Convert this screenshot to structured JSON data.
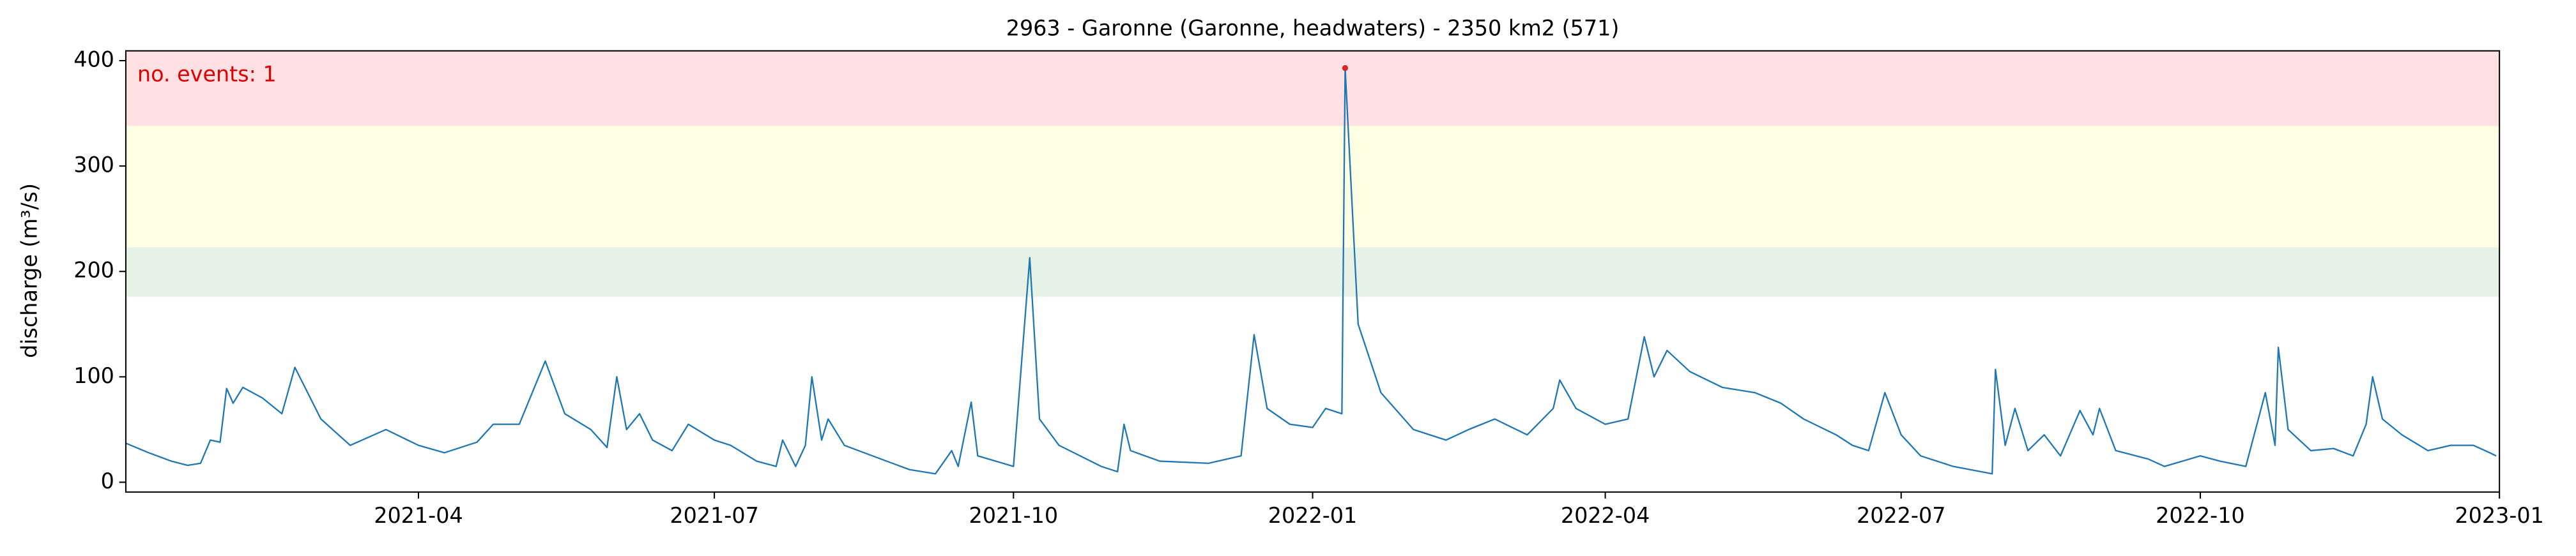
{
  "chart_data": {
    "type": "line",
    "title": "2963 - Garonne (Garonne, headwaters) - 2350 km2 (571)",
    "y_label": "discharge (m³/s)",
    "annotation": "no. events: 1",
    "xlim": [
      "2021-01",
      "2023-01"
    ],
    "xticks": [
      "2021-04",
      "2021-07",
      "2021-10",
      "2022-01",
      "2022-04",
      "2022-07",
      "2022-10",
      "2023-01"
    ],
    "ylim": [
      -9.3,
      409.3
    ],
    "yticks": [
      0,
      100,
      200,
      300,
      400
    ],
    "grid": false,
    "bands": [
      {
        "ymin": 176,
        "ymax": 223,
        "color": "#e5f2e5"
      },
      {
        "ymin": 223,
        "ymax": 338,
        "color": "#fefee3"
      },
      {
        "ymin": 338,
        "ymax": 409.3,
        "color": "#ffe1e4"
      }
    ],
    "x": [
      "2021-01-01",
      "2021-01-08",
      "2021-01-15",
      "2021-01-20",
      "2021-01-24",
      "2021-01-27",
      "2021-01-30",
      "2021-02-01",
      "2021-02-03",
      "2021-02-06",
      "2021-02-12",
      "2021-02-18",
      "2021-02-22",
      "2021-03-02",
      "2021-03-11",
      "2021-03-22",
      "2021-04-01",
      "2021-04-09",
      "2021-04-19",
      "2021-04-24",
      "2021-05-02",
      "2021-05-10",
      "2021-05-16",
      "2021-05-24",
      "2021-05-29",
      "2021-06-01",
      "2021-06-04",
      "2021-06-08",
      "2021-06-12",
      "2021-06-18",
      "2021-06-23",
      "2021-07-01",
      "2021-07-06",
      "2021-07-14",
      "2021-07-20",
      "2021-07-22",
      "2021-07-26",
      "2021-07-29",
      "2021-07-31",
      "2021-08-03",
      "2021-08-05",
      "2021-08-10",
      "2021-08-23",
      "2021-08-30",
      "2021-09-07",
      "2021-09-12",
      "2021-09-14",
      "2021-09-18",
      "2021-09-20",
      "2021-10-01",
      "2021-10-06",
      "2021-10-09",
      "2021-10-15",
      "2021-10-28",
      "2021-11-02",
      "2021-11-04",
      "2021-11-06",
      "2021-11-15",
      "2021-11-30",
      "2021-12-10",
      "2021-12-14",
      "2021-12-18",
      "2021-12-25",
      "2022-01-01",
      "2022-01-05",
      "2022-01-10",
      "2022-01-11",
      "2022-01-15",
      "2022-01-22",
      "2022-02-01",
      "2022-02-11",
      "2022-02-18",
      "2022-02-26",
      "2022-03-08",
      "2022-03-16",
      "2022-03-18",
      "2022-03-23",
      "2022-04-01",
      "2022-04-08",
      "2022-04-13",
      "2022-04-16",
      "2022-04-20",
      "2022-04-27",
      "2022-05-07",
      "2022-05-17",
      "2022-05-25",
      "2022-06-01",
      "2022-06-11",
      "2022-06-16",
      "2022-06-21",
      "2022-06-26",
      "2022-07-01",
      "2022-07-07",
      "2022-07-17",
      "2022-07-29",
      "2022-07-30",
      "2022-08-02",
      "2022-08-05",
      "2022-08-09",
      "2022-08-14",
      "2022-08-19",
      "2022-08-25",
      "2022-08-29",
      "2022-08-31",
      "2022-09-05",
      "2022-09-15",
      "2022-09-20",
      "2022-10-01",
      "2022-10-07",
      "2022-10-15",
      "2022-10-21",
      "2022-10-24",
      "2022-10-25",
      "2022-10-28",
      "2022-11-04",
      "2022-11-11",
      "2022-11-17",
      "2022-11-21",
      "2022-11-23",
      "2022-11-26",
      "2022-12-02",
      "2022-12-10",
      "2022-12-17",
      "2022-12-24",
      "2022-12-29",
      "2022-12-31"
    ],
    "series": [
      {
        "color": "#1f77b4",
        "values": [
          37,
          28,
          20,
          16,
          18,
          40,
          38,
          89,
          75,
          90,
          80,
          65,
          109,
          60,
          35,
          50,
          35,
          28,
          38,
          55,
          55,
          115,
          65,
          50,
          33,
          100,
          50,
          65,
          40,
          30,
          55,
          40,
          35,
          20,
          15,
          40,
          15,
          35,
          100,
          40,
          60,
          35,
          20,
          12,
          8,
          30,
          15,
          76,
          25,
          15,
          213,
          60,
          35,
          15,
          10,
          55,
          30,
          20,
          18,
          25,
          140,
          70,
          55,
          52,
          70,
          65,
          393,
          150,
          85,
          50,
          40,
          50,
          60,
          45,
          70,
          97,
          70,
          55,
          60,
          138,
          100,
          125,
          105,
          90,
          85,
          75,
          60,
          45,
          35,
          30,
          85,
          45,
          25,
          15,
          8,
          107,
          35,
          70,
          30,
          45,
          25,
          68,
          45,
          70,
          30,
          22,
          15,
          25,
          20,
          15,
          85,
          35,
          128,
          50,
          30,
          32,
          25,
          55,
          100,
          60,
          45,
          30,
          35,
          35,
          28,
          25
        ]
      }
    ],
    "events": {
      "color": "#d62728",
      "x": [
        "2022-01-11"
      ],
      "values": [
        393
      ]
    },
    "annotation_color": "#e00000"
  }
}
